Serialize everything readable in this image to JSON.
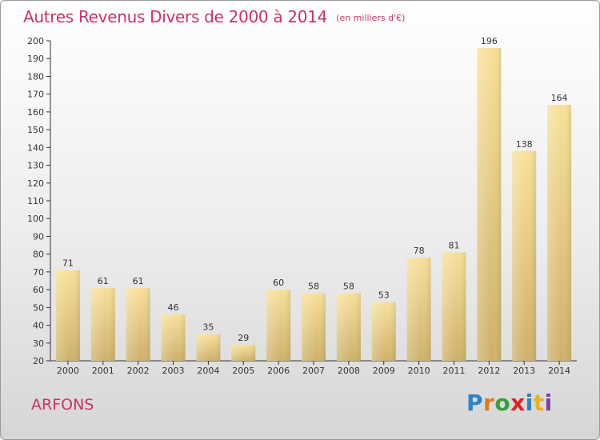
{
  "chart_data": {
    "type": "bar",
    "title": "Autres Revenus Divers de 2000 à 2014",
    "unit_note": "(en milliers d'€)",
    "categories": [
      "2000",
      "2001",
      "2002",
      "2003",
      "2004",
      "2005",
      "2006",
      "2007",
      "2008",
      "2009",
      "2010",
      "2011",
      "2012",
      "2013",
      "2014"
    ],
    "values": [
      71,
      61,
      61,
      46,
      35,
      29,
      60,
      58,
      58,
      53,
      78,
      81,
      196,
      138,
      164
    ],
    "yticks": [
      20,
      30,
      40,
      50,
      60,
      70,
      80,
      90,
      100,
      110,
      120,
      130,
      140,
      150,
      160,
      170,
      180,
      190,
      200
    ],
    "ylim": [
      20,
      200
    ],
    "grid": false,
    "bar_color_top": "#f8e09a",
    "bar_color_bottom": "#cdb06a",
    "axis_color": "#333333"
  },
  "footer": {
    "commune": "ARFONS",
    "logo_text": "Proxiti",
    "logo_colors": [
      "#2b83c6",
      "#e07a1f",
      "#3a9e3a",
      "#d8232a",
      "#2b83c6",
      "#e8b21c",
      "#7a3fa0"
    ]
  },
  "colors": {
    "title": "#cc3366",
    "commune": "#cc3366"
  }
}
